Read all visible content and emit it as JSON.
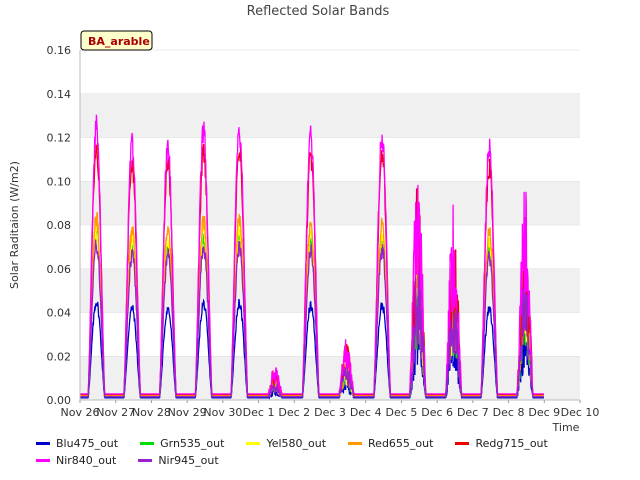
{
  "chart_data": {
    "type": "line",
    "title": "Reflected Solar Bands",
    "xlabel": "Time",
    "ylabel": "Solar Raditaion (W/m2)",
    "annotation": "BA_arable",
    "ylim": [
      0.0,
      0.16
    ],
    "yticks": [
      "0.00",
      "0.02",
      "0.04",
      "0.06",
      "0.08",
      "0.10",
      "0.12",
      "0.14",
      "0.16"
    ],
    "xticks": [
      "Nov 26",
      "Nov 27",
      "Nov 28",
      "Nov 29",
      "Nov 30",
      "Dec 1",
      "Dec 2",
      "Dec 3",
      "Dec 4",
      "Dec 5",
      "Dec 6",
      "Dec 7",
      "Dec 8",
      "Dec 9",
      "Dec 10"
    ],
    "xlim_days": [
      0,
      14
    ],
    "grid": "horizontal bands",
    "legend_position": "bottom",
    "day_peaks": [
      {
        "day": "Nov 26",
        "nir840": 0.131
      },
      {
        "day": "Nov 27",
        "nir840": 0.123
      },
      {
        "day": "Nov 28",
        "nir840": 0.122
      },
      {
        "day": "Nov 29",
        "nir840": 0.129
      },
      {
        "day": "Nov 30",
        "nir840": 0.13
      },
      {
        "day": "Dec 1",
        "nir840": 0.016
      },
      {
        "day": "Dec 2",
        "nir840": 0.126
      },
      {
        "day": "Dec 3",
        "nir840": 0.029
      },
      {
        "day": "Dec 4",
        "nir840": 0.127
      },
      {
        "day": "Dec 5",
        "nir840": 0.112
      },
      {
        "day": "Dec 6",
        "nir840": 0.092
      },
      {
        "day": "Dec 7",
        "nir840": 0.121
      },
      {
        "day": "Dec 8",
        "nir840": 0.097
      }
    ],
    "series": [
      {
        "name": "Blu475_out",
        "color": "#0000cc",
        "ratio": 0.36,
        "night": 0.001
      },
      {
        "name": "Grn535_out",
        "color": "#00dd00",
        "ratio": 0.6,
        "night": 0.0015
      },
      {
        "name": "Yel580_out",
        "color": "#ffff00",
        "ratio": 0.63,
        "night": 0.0018
      },
      {
        "name": "Red655_out",
        "color": "#ff9900",
        "ratio": 0.67,
        "night": 0.002
      },
      {
        "name": "Redg715_out",
        "color": "#ee0000",
        "ratio": 0.93,
        "night": 0.0025
      },
      {
        "name": "Nir840_out",
        "color": "#ff00ff",
        "ratio": 1.0,
        "night": 0.0028
      },
      {
        "name": "Nir945_out",
        "color": "#9922cc",
        "ratio": 0.57,
        "night": 0.0015
      }
    ]
  }
}
